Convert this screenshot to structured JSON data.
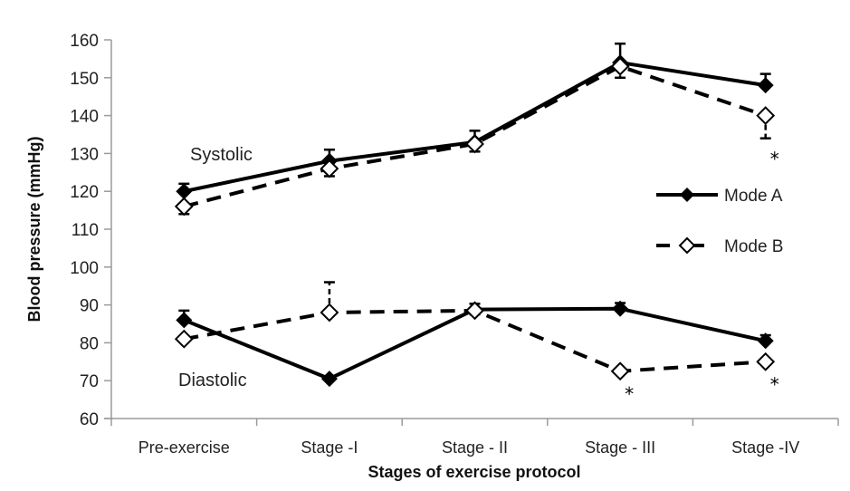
{
  "chart_data": {
    "type": "line",
    "title": "",
    "xlabel": "Stages of exercise protocol",
    "ylabel": "Blood pressure (mmHg)",
    "ylim": [
      60,
      160
    ],
    "yticks": [
      60,
      70,
      80,
      90,
      100,
      110,
      120,
      130,
      140,
      150,
      160
    ],
    "categories": [
      "Pre-exercise",
      "Stage -I",
      "Stage - II",
      "Stage - III",
      "Stage -IV"
    ],
    "grid": false,
    "legend": {
      "position": "right",
      "entries": [
        {
          "name": "Mode A",
          "style": "solid",
          "marker": "filled-diamond"
        },
        {
          "name": "Mode B",
          "style": "dashed",
          "marker": "open-diamond"
        }
      ]
    },
    "annotations": [
      {
        "text": "Systolic",
        "near": "systolic-series"
      },
      {
        "text": "Diastolic",
        "near": "diastolic-series"
      }
    ],
    "significance_marker": "*",
    "series": [
      {
        "name": "Mode A",
        "group": "Systolic",
        "style": "solid",
        "marker": "filled",
        "values": [
          120,
          128,
          133,
          154,
          148
        ],
        "errors": [
          2,
          3,
          3,
          5,
          3
        ]
      },
      {
        "name": "Mode B",
        "group": "Systolic",
        "style": "dashed",
        "marker": "open",
        "values": [
          116,
          126,
          132.5,
          153,
          140
        ],
        "errors": [
          2,
          2,
          2,
          3,
          6
        ],
        "significant": [
          false,
          false,
          false,
          false,
          true
        ]
      },
      {
        "name": "Mode A",
        "group": "Diastolic",
        "style": "solid",
        "marker": "filled",
        "values": [
          86,
          70.5,
          88.8,
          89,
          80.5
        ],
        "errors": [
          2.5,
          0.5,
          1.5,
          1.5,
          1.5
        ]
      },
      {
        "name": "Mode B",
        "group": "Diastolic",
        "style": "dashed",
        "marker": "open",
        "values": [
          81,
          88,
          88.5,
          72.5,
          75
        ],
        "errors": [
          0.5,
          8,
          1,
          0.5,
          0.5
        ],
        "significant": [
          false,
          false,
          false,
          true,
          true
        ]
      }
    ]
  }
}
